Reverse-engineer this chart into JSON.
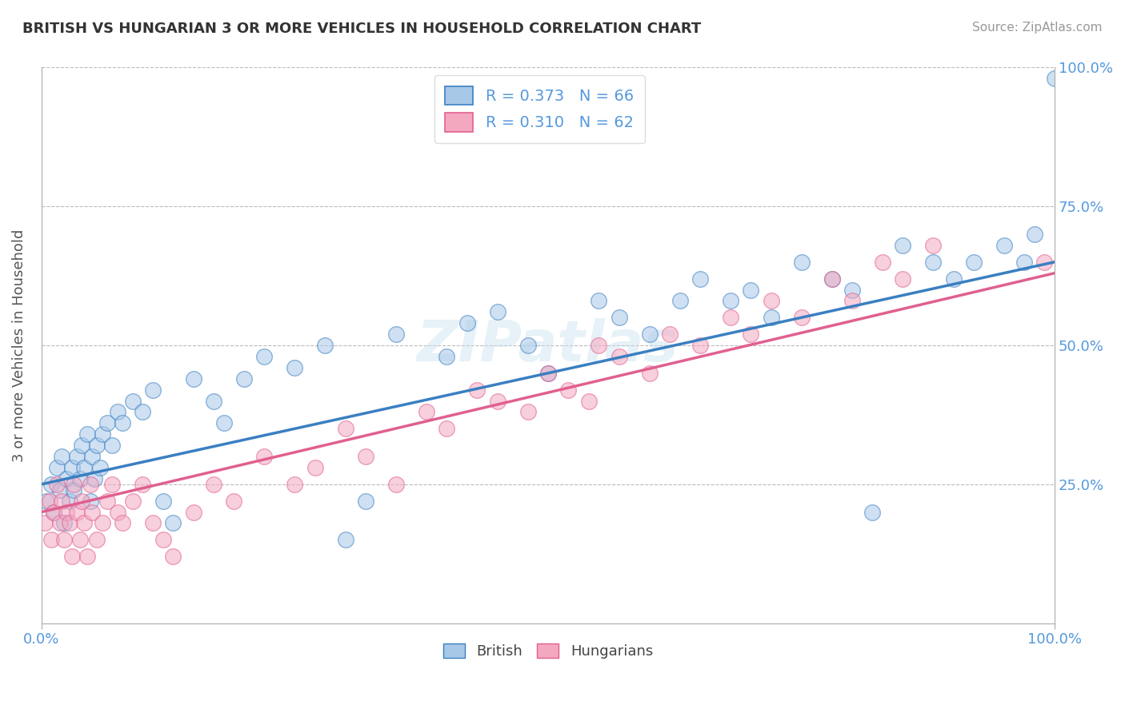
{
  "title": "BRITISH VS HUNGARIAN 3 OR MORE VEHICLES IN HOUSEHOLD CORRELATION CHART",
  "source": "Source: ZipAtlas.com",
  "ylabel": "3 or more Vehicles in Household",
  "color_british": "#a8c8e8",
  "color_hungarian": "#f4a8c0",
  "color_line_british": "#3a7fc1",
  "color_line_hungarian": "#e06090",
  "color_tick": "#5599dd",
  "watermark": "ZIPatlas",
  "legend_label1": "R = 0.373   N = 66",
  "legend_label2": "R = 0.310   N = 62",
  "legend_bottom_british": "British",
  "legend_bottom_hungarian": "Hungarians",
  "brit_intercept": 25.0,
  "brit_slope": 0.38,
  "hung_intercept": 20.0,
  "hung_slope": 0.42,
  "british_x": [
    0.5,
    1.0,
    1.2,
    1.5,
    1.8,
    2.0,
    2.2,
    2.5,
    2.8,
    3.0,
    3.2,
    3.5,
    3.8,
    4.0,
    4.2,
    4.5,
    4.8,
    5.0,
    5.2,
    5.5,
    5.8,
    6.0,
    6.5,
    7.0,
    7.5,
    8.0,
    9.0,
    10.0,
    11.0,
    12.0,
    13.0,
    15.0,
    17.0,
    18.0,
    20.0,
    22.0,
    25.0,
    28.0,
    30.0,
    32.0,
    35.0,
    40.0,
    42.0,
    45.0,
    48.0,
    50.0,
    55.0,
    57.0,
    60.0,
    63.0,
    65.0,
    68.0,
    70.0,
    72.0,
    75.0,
    78.0,
    80.0,
    82.0,
    85.0,
    88.0,
    90.0,
    92.0,
    95.0,
    97.0,
    98.0,
    100.0
  ],
  "british_y": [
    22.0,
    25.0,
    20.0,
    28.0,
    24.0,
    30.0,
    18.0,
    26.0,
    22.0,
    28.0,
    24.0,
    30.0,
    26.0,
    32.0,
    28.0,
    34.0,
    22.0,
    30.0,
    26.0,
    32.0,
    28.0,
    34.0,
    36.0,
    32.0,
    38.0,
    36.0,
    40.0,
    38.0,
    42.0,
    22.0,
    18.0,
    44.0,
    40.0,
    36.0,
    44.0,
    48.0,
    46.0,
    50.0,
    15.0,
    22.0,
    52.0,
    48.0,
    54.0,
    56.0,
    50.0,
    45.0,
    58.0,
    55.0,
    52.0,
    58.0,
    62.0,
    58.0,
    60.0,
    55.0,
    65.0,
    62.0,
    60.0,
    20.0,
    68.0,
    65.0,
    62.0,
    65.0,
    68.0,
    65.0,
    70.0,
    98.0
  ],
  "hungarian_x": [
    0.3,
    0.8,
    1.0,
    1.2,
    1.5,
    1.8,
    2.0,
    2.2,
    2.5,
    2.8,
    3.0,
    3.2,
    3.5,
    3.8,
    4.0,
    4.2,
    4.5,
    4.8,
    5.0,
    5.5,
    6.0,
    6.5,
    7.0,
    7.5,
    8.0,
    9.0,
    10.0,
    11.0,
    12.0,
    13.0,
    15.0,
    17.0,
    19.0,
    22.0,
    25.0,
    27.0,
    30.0,
    32.0,
    35.0,
    38.0,
    40.0,
    43.0,
    45.0,
    48.0,
    50.0,
    52.0,
    54.0,
    55.0,
    57.0,
    60.0,
    62.0,
    65.0,
    68.0,
    70.0,
    72.0,
    75.0,
    78.0,
    80.0,
    83.0,
    85.0,
    88.0,
    99.0
  ],
  "hungarian_y": [
    18.0,
    22.0,
    15.0,
    20.0,
    25.0,
    18.0,
    22.0,
    15.0,
    20.0,
    18.0,
    12.0,
    25.0,
    20.0,
    15.0,
    22.0,
    18.0,
    12.0,
    25.0,
    20.0,
    15.0,
    18.0,
    22.0,
    25.0,
    20.0,
    18.0,
    22.0,
    25.0,
    18.0,
    15.0,
    12.0,
    20.0,
    25.0,
    22.0,
    30.0,
    25.0,
    28.0,
    35.0,
    30.0,
    25.0,
    38.0,
    35.0,
    42.0,
    40.0,
    38.0,
    45.0,
    42.0,
    40.0,
    50.0,
    48.0,
    45.0,
    52.0,
    50.0,
    55.0,
    52.0,
    58.0,
    55.0,
    62.0,
    58.0,
    65.0,
    62.0,
    68.0,
    65.0
  ]
}
